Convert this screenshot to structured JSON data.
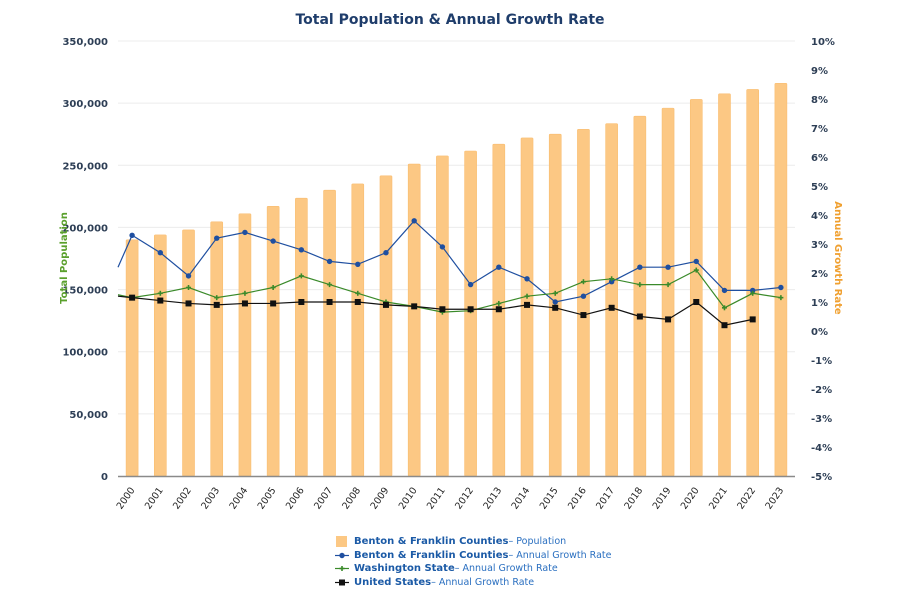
{
  "chart_data": {
    "type": "bar",
    "title": "Total Population & Annual Growth Rate",
    "xlabel": "",
    "ylabel": "Total Population",
    "y2label": "Annual Growth Rate",
    "categories": [
      "2000",
      "2001",
      "2002",
      "2003",
      "2004",
      "2005",
      "2006",
      "2007",
      "2008",
      "2009",
      "2010",
      "2011",
      "2012",
      "2013",
      "2014",
      "2015",
      "2016",
      "2017",
      "2018",
      "2019",
      "2020",
      "2021",
      "2022",
      "2023"
    ],
    "ylim": [
      0,
      350000
    ],
    "yticks": [
      0,
      50000,
      100000,
      150000,
      200000,
      250000,
      300000,
      350000
    ],
    "ytick_labels": [
      "0",
      "50,000",
      "100,000",
      "150,000",
      "200,000",
      "250,000",
      "300,000",
      "350,000"
    ],
    "y2lim": [
      -5,
      10
    ],
    "y2ticks": [
      -5,
      -4,
      -3,
      -2,
      -1,
      0,
      1,
      2,
      3,
      4,
      5,
      6,
      7,
      8,
      9,
      10
    ],
    "y2tick_labels": [
      "-5%",
      "-4%",
      "-3%",
      "-2%",
      "-1%",
      "0%",
      "1%",
      "2%",
      "3%",
      "4%",
      "5%",
      "6%",
      "7%",
      "8%",
      "9%",
      "10%"
    ],
    "grid": true,
    "legend_position": "bottom-center",
    "series": [
      {
        "name": "Benton & Franklin Counties",
        "suffix": " – Population",
        "type": "bar",
        "axis": "left",
        "color": "#fcc884",
        "values": [
          190000,
          194000,
          198000,
          204500,
          211000,
          217000,
          223500,
          230000,
          235000,
          241500,
          251000,
          257500,
          261500,
          267000,
          272000,
          275000,
          279000,
          283500,
          289500,
          296000,
          303000,
          307500,
          311000,
          316000
        ]
      },
      {
        "name": "Benton & Franklin Counties",
        "suffix": " – Annual Growth Rate",
        "type": "line",
        "axis": "right",
        "marker": "circle",
        "color": "#1f4fa0",
        "lead_in": 2.2,
        "values": [
          3.3,
          2.7,
          1.9,
          3.2,
          3.4,
          3.1,
          2.8,
          2.4,
          2.3,
          2.7,
          3.8,
          2.9,
          1.6,
          2.2,
          1.8,
          1.0,
          1.2,
          1.7,
          2.2,
          2.2,
          2.4,
          1.4,
          1.4,
          1.5
        ]
      },
      {
        "name": "Washington State",
        "suffix": " – Annual Growth Rate",
        "type": "line",
        "axis": "right",
        "marker": "plus",
        "color": "#3a8a2a",
        "lead_in": 1.25,
        "values": [
          1.15,
          1.3,
          1.5,
          1.15,
          1.3,
          1.5,
          1.9,
          1.6,
          1.3,
          1.0,
          0.85,
          0.65,
          0.7,
          0.95,
          1.2,
          1.3,
          1.7,
          1.8,
          1.6,
          1.6,
          2.1,
          0.8,
          1.3,
          1.15
        ]
      },
      {
        "name": "United States",
        "suffix": " – Annual Growth Rate",
        "type": "line",
        "axis": "right",
        "marker": "square",
        "color": "#111111",
        "lead_in": 1.2,
        "values": [
          1.15,
          1.05,
          0.95,
          0.9,
          0.95,
          0.95,
          1.0,
          1.0,
          1.0,
          0.9,
          0.85,
          0.75,
          0.75,
          0.75,
          0.9,
          0.8,
          0.55,
          0.8,
          0.5,
          0.4,
          1.0,
          0.2,
          0.4,
          null
        ]
      }
    ]
  }
}
